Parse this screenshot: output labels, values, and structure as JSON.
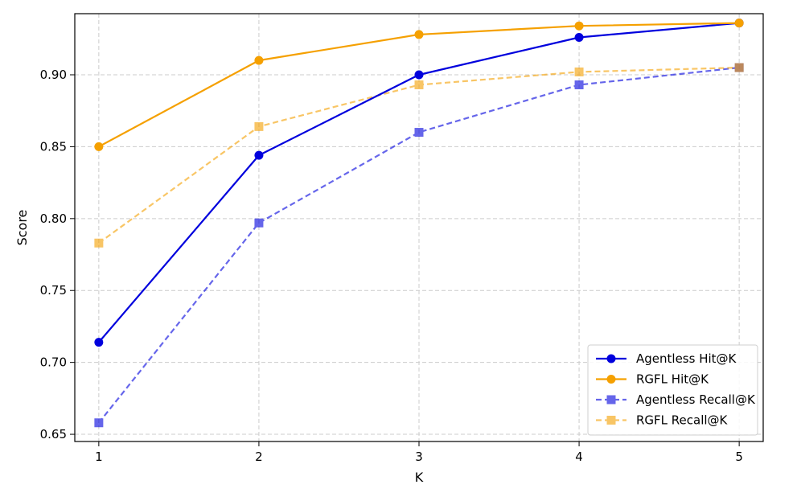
{
  "chart_data": {
    "type": "line",
    "title": "",
    "xlabel": "K",
    "ylabel": "Score",
    "x": [
      1,
      2,
      3,
      4,
      5
    ],
    "xlim": [
      0.85,
      5.15
    ],
    "ylim": [
      0.645,
      0.9425
    ],
    "x_ticks": [
      "1",
      "2",
      "3",
      "4",
      "5"
    ],
    "y_ticks": [
      "0.65",
      "0.70",
      "0.75",
      "0.80",
      "0.85",
      "0.90"
    ],
    "y_tick_values": [
      0.65,
      0.7,
      0.75,
      0.8,
      0.85,
      0.9
    ],
    "grid": true,
    "legend_position": "bottom-right",
    "series": [
      {
        "name": "Agentless Hit@K",
        "values": [
          0.714,
          0.844,
          0.9,
          0.926,
          0.936
        ],
        "color": "#0000dd",
        "style": "solid",
        "marker": "circle",
        "opacity": 1.0
      },
      {
        "name": "RGFL Hit@K",
        "values": [
          0.85,
          0.91,
          0.928,
          0.934,
          0.936
        ],
        "color": "#f5a000",
        "style": "solid",
        "marker": "circle",
        "opacity": 1.0
      },
      {
        "name": "Agentless Recall@K",
        "values": [
          0.658,
          0.797,
          0.86,
          0.893,
          0.905
        ],
        "color": "#0000dd",
        "style": "dashed",
        "marker": "square",
        "opacity": 0.6
      },
      {
        "name": "RGFL Recall@K",
        "values": [
          0.783,
          0.864,
          0.893,
          0.902,
          0.905
        ],
        "color": "#f5a000",
        "style": "dashed",
        "marker": "square",
        "opacity": 0.6
      }
    ]
  }
}
